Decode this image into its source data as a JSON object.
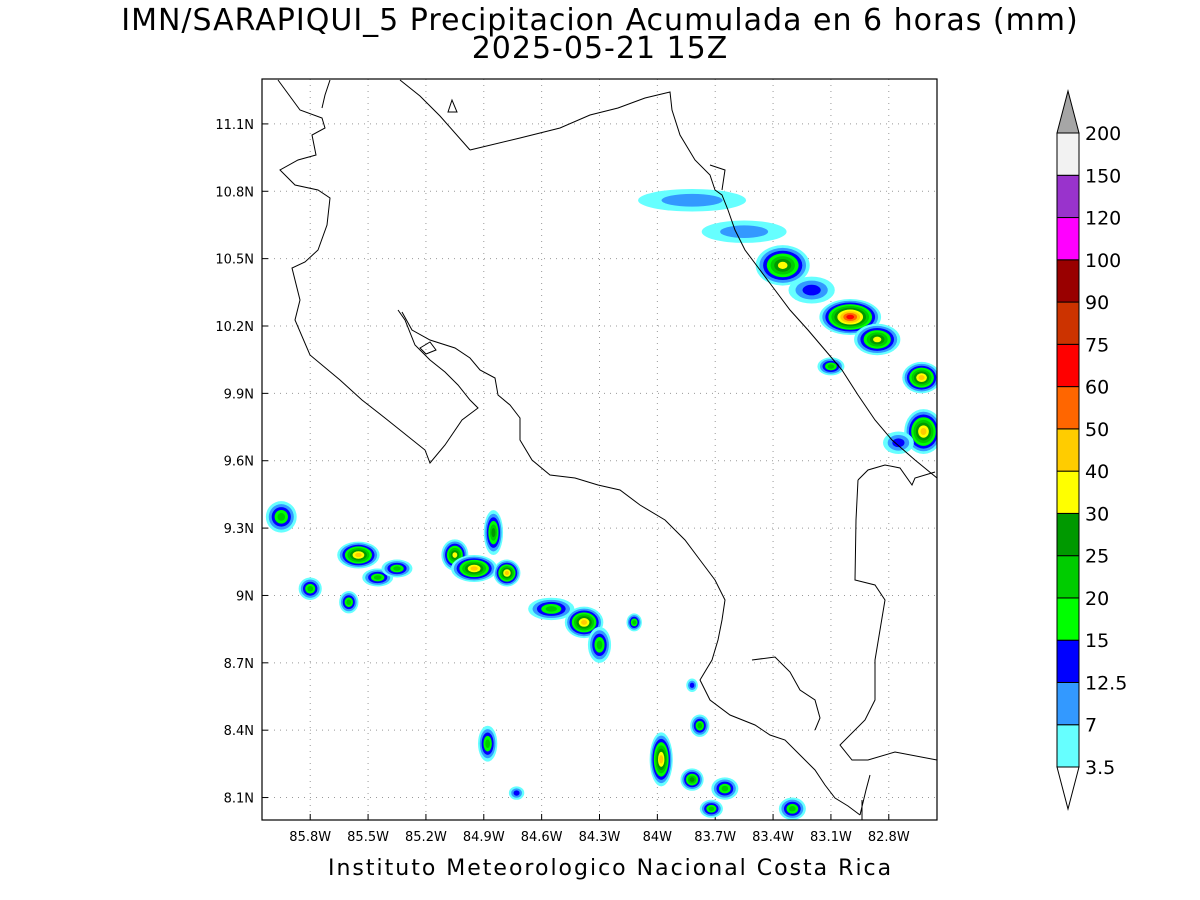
{
  "title": {
    "line1": "IMN/SARAPIQUI_5 Precipitacion Acumulada en 6 horas (mm)",
    "line2": "2025-05-21 15Z"
  },
  "footer": "Instituto Meteorologico Nacional Costa Rica",
  "map": {
    "lon_range": [
      -86.05,
      -82.55
    ],
    "lat_range": [
      8.0,
      11.3
    ],
    "grid": true,
    "coastline_color": "#000000",
    "lat_ticks": [
      {
        "value": 8.1,
        "label": "8.1N"
      },
      {
        "value": 8.4,
        "label": "8.4N"
      },
      {
        "value": 8.7,
        "label": "8.7N"
      },
      {
        "value": 9.0,
        "label": "9N"
      },
      {
        "value": 9.3,
        "label": "9.3N"
      },
      {
        "value": 9.6,
        "label": "9.6N"
      },
      {
        "value": 9.9,
        "label": "9.9N"
      },
      {
        "value": 10.2,
        "label": "10.2N"
      },
      {
        "value": 10.5,
        "label": "10.5N"
      },
      {
        "value": 10.8,
        "label": "10.8N"
      },
      {
        "value": 11.1,
        "label": "11.1N"
      }
    ],
    "lon_ticks": [
      {
        "value": -85.8,
        "label": "85.8W"
      },
      {
        "value": -85.5,
        "label": "85.5W"
      },
      {
        "value": -85.2,
        "label": "85.2W"
      },
      {
        "value": -84.9,
        "label": "84.9W"
      },
      {
        "value": -84.6,
        "label": "84.6W"
      },
      {
        "value": -84.3,
        "label": "84.3W"
      },
      {
        "value": -84.0,
        "label": "84W"
      },
      {
        "value": -83.7,
        "label": "83.7W"
      },
      {
        "value": -83.4,
        "label": "83.4W"
      },
      {
        "value": -83.1,
        "label": "83.1W"
      },
      {
        "value": -82.8,
        "label": "82.8W"
      }
    ],
    "precip_cells": [
      {
        "lon": -83.82,
        "lat": 10.76,
        "rx": 0.28,
        "ry": 0.05,
        "mm": 7
      },
      {
        "lon": -83.55,
        "lat": 10.62,
        "rx": 0.22,
        "ry": 0.05,
        "mm": 7
      },
      {
        "lon": -83.35,
        "lat": 10.47,
        "rx": 0.14,
        "ry": 0.09,
        "mm": 30
      },
      {
        "lon": -83.2,
        "lat": 10.36,
        "rx": 0.12,
        "ry": 0.06,
        "mm": 12.5
      },
      {
        "lon": -83.0,
        "lat": 10.24,
        "rx": 0.16,
        "ry": 0.08,
        "mm": 60
      },
      {
        "lon": -82.86,
        "lat": 10.14,
        "rx": 0.12,
        "ry": 0.07,
        "mm": 30
      },
      {
        "lon": -83.1,
        "lat": 10.02,
        "rx": 0.07,
        "ry": 0.04,
        "mm": 20
      },
      {
        "lon": -82.63,
        "lat": 9.97,
        "rx": 0.1,
        "ry": 0.07,
        "mm": 40
      },
      {
        "lon": -82.62,
        "lat": 9.73,
        "rx": 0.1,
        "ry": 0.1,
        "mm": 40
      },
      {
        "lon": -82.75,
        "lat": 9.68,
        "rx": 0.08,
        "ry": 0.05,
        "mm": 12.5
      },
      {
        "lon": -85.95,
        "lat": 9.35,
        "rx": 0.08,
        "ry": 0.07,
        "mm": 20
      },
      {
        "lon": -85.8,
        "lat": 9.03,
        "rx": 0.06,
        "ry": 0.05,
        "mm": 20
      },
      {
        "lon": -85.55,
        "lat": 9.18,
        "rx": 0.11,
        "ry": 0.06,
        "mm": 40
      },
      {
        "lon": -85.45,
        "lat": 9.08,
        "rx": 0.08,
        "ry": 0.04,
        "mm": 20
      },
      {
        "lon": -85.6,
        "lat": 8.97,
        "rx": 0.05,
        "ry": 0.05,
        "mm": 20
      },
      {
        "lon": -85.35,
        "lat": 9.12,
        "rx": 0.08,
        "ry": 0.04,
        "mm": 20
      },
      {
        "lon": -85.05,
        "lat": 9.18,
        "rx": 0.07,
        "ry": 0.07,
        "mm": 30
      },
      {
        "lon": -84.95,
        "lat": 9.12,
        "rx": 0.12,
        "ry": 0.06,
        "mm": 40
      },
      {
        "lon": -84.85,
        "lat": 9.28,
        "rx": 0.05,
        "ry": 0.1,
        "mm": 25
      },
      {
        "lon": -84.78,
        "lat": 9.1,
        "rx": 0.07,
        "ry": 0.06,
        "mm": 40
      },
      {
        "lon": -84.55,
        "lat": 8.94,
        "rx": 0.12,
        "ry": 0.05,
        "mm": 20
      },
      {
        "lon": -84.38,
        "lat": 8.88,
        "rx": 0.1,
        "ry": 0.07,
        "mm": 40
      },
      {
        "lon": -84.3,
        "lat": 8.78,
        "rx": 0.06,
        "ry": 0.08,
        "mm": 20
      },
      {
        "lon": -84.12,
        "lat": 8.88,
        "rx": 0.04,
        "ry": 0.04,
        "mm": 20
      },
      {
        "lon": -84.88,
        "lat": 8.34,
        "rx": 0.05,
        "ry": 0.08,
        "mm": 20
      },
      {
        "lon": -84.73,
        "lat": 8.12,
        "rx": 0.04,
        "ry": 0.03,
        "mm": 12.5
      },
      {
        "lon": -83.82,
        "lat": 8.6,
        "rx": 0.03,
        "ry": 0.03,
        "mm": 12.5
      },
      {
        "lon": -83.78,
        "lat": 8.42,
        "rx": 0.05,
        "ry": 0.05,
        "mm": 20
      },
      {
        "lon": -83.98,
        "lat": 8.27,
        "rx": 0.06,
        "ry": 0.12,
        "mm": 40
      },
      {
        "lon": -83.82,
        "lat": 8.18,
        "rx": 0.06,
        "ry": 0.05,
        "mm": 25
      },
      {
        "lon": -83.65,
        "lat": 8.14,
        "rx": 0.07,
        "ry": 0.05,
        "mm": 20
      },
      {
        "lon": -83.72,
        "lat": 8.05,
        "rx": 0.06,
        "ry": 0.04,
        "mm": 20
      },
      {
        "lon": -83.3,
        "lat": 8.05,
        "rx": 0.07,
        "ry": 0.05,
        "mm": 20
      }
    ]
  },
  "colorbar": {
    "colors": [
      "#ffffff",
      "#66ffff",
      "#3399ff",
      "#0000ff",
      "#00ff00",
      "#00cc00",
      "#009900",
      "#ffff00",
      "#ffcc00",
      "#ff6600",
      "#ff0000",
      "#cc3300",
      "#990000",
      "#ff00ff",
      "#9933cc",
      "#f2f2f2",
      "#a6a6a6"
    ],
    "labels": [
      "3.5",
      "7",
      "12.5",
      "15",
      "20",
      "25",
      "30",
      "40",
      "50",
      "60",
      "75",
      "90",
      "100",
      "120",
      "150",
      "200"
    ],
    "thresholds": [
      3.5,
      7,
      12.5,
      15,
      20,
      25,
      30,
      40,
      50,
      60,
      75,
      90,
      100,
      120,
      150,
      200
    ]
  }
}
